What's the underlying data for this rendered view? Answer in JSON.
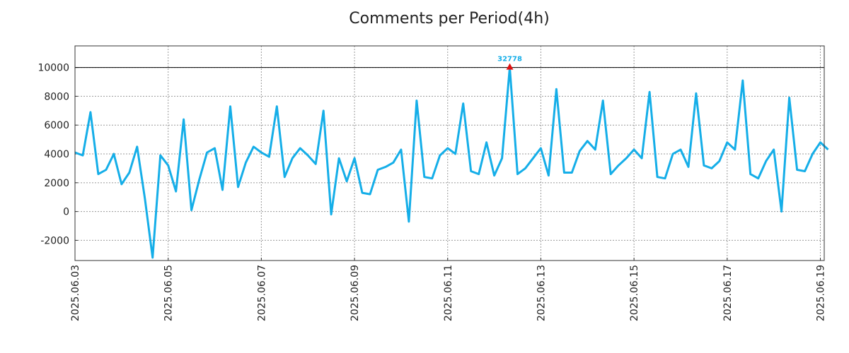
{
  "chart_data": {
    "type": "line",
    "title": "Comments per Period(4h)",
    "xlabel": "",
    "ylabel": "",
    "x_tick_labels": [
      "2025.06.03",
      "2025.06.05",
      "2025.06.07",
      "2025.06.09",
      "2025.06.11",
      "2025.06.13",
      "2025.06.15",
      "2025.06.17",
      "2025.06.19"
    ],
    "y_ticks": [
      -2000,
      0,
      2000,
      4000,
      6000,
      8000,
      10000
    ],
    "y_tick_labels": [
      "-2000",
      "0",
      "2000",
      "4000",
      "6000",
      "8000",
      "10000"
    ],
    "ylim": [
      -3400,
      11500
    ],
    "x_start": "2025-06-03 00:00",
    "x_end": "2025-06-19 02:00",
    "interval": "4h",
    "grid": true,
    "reference_line": 10000,
    "peak_marker": {
      "label": "32778",
      "x": "2025-06-12 08:00",
      "y": 10000
    },
    "series": [
      {
        "color": "#15aee8",
        "values": [
          4100,
          3900,
          6900,
          2600,
          2900,
          4000,
          1900,
          2700,
          4500,
          900,
          -3200,
          3900,
          3200,
          1400,
          6400,
          100,
          2200,
          4100,
          4400,
          1500,
          7300,
          1700,
          3400,
          4500,
          4100,
          3800,
          7300,
          2400,
          3700,
          4400,
          3900,
          3300,
          7000,
          -200,
          3700,
          2100,
          3700,
          1300,
          1200,
          2900,
          3100,
          3400,
          4300,
          -700,
          7700,
          2400,
          2300,
          3900,
          4400,
          4000,
          7500,
          2800,
          2600,
          4800,
          2500,
          3700,
          10000,
          2600,
          3000,
          3700,
          4400,
          2500,
          8500,
          2700,
          2700,
          4200,
          4900,
          4300,
          7700,
          2600,
          3200,
          3700,
          4300,
          3700,
          8300,
          2400,
          2300,
          4000,
          4300,
          3100,
          8200,
          3200,
          3000,
          3500,
          4800,
          4300,
          9100,
          2600,
          2300,
          3500,
          4300,
          0,
          7900,
          2900,
          2800,
          4000,
          4800,
          4300
        ]
      }
    ]
  }
}
